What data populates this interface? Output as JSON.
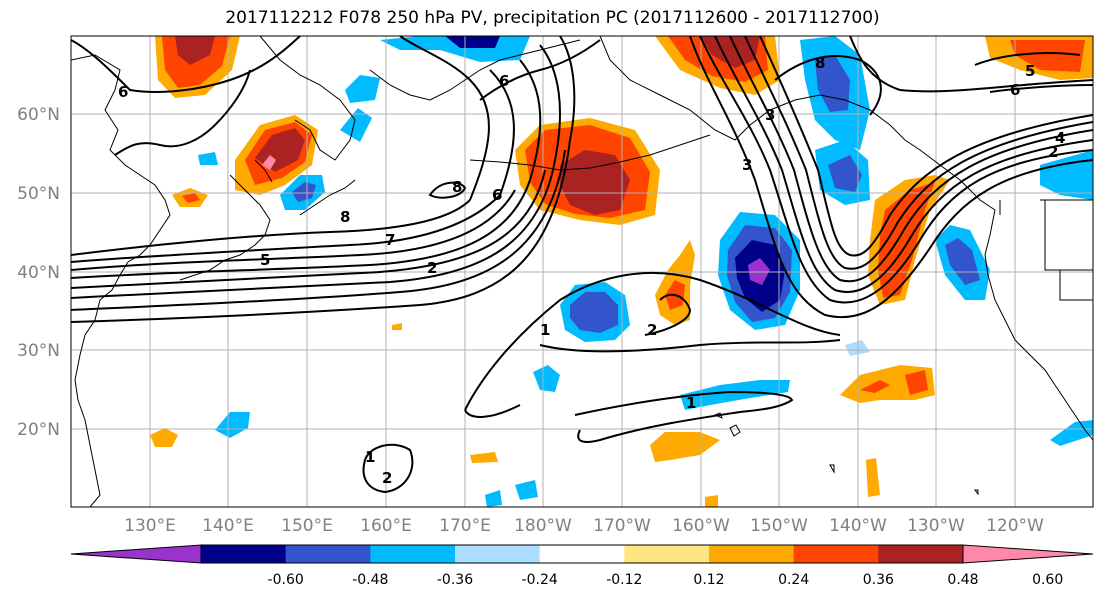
{
  "title": "2017112212 F078 250 hPa PV, precipitation PC (2017112600 - 2017112700)",
  "lat_labels": [
    "60°N",
    "50°N",
    "40°N",
    "30°N",
    "20°N"
  ],
  "lon_labels": [
    "130°E",
    "140°E",
    "150°E",
    "160°E",
    "170°E",
    "180°W",
    "170°W",
    "160°W",
    "150°W",
    "140°W",
    "130°W",
    "120°W"
  ],
  "colorbar": {
    "colors": [
      "#9933cc",
      "#000088",
      "#3355cc",
      "#00bbff",
      "#aaddff",
      "#ffffff",
      "#ffe680",
      "#ffaa00",
      "#ff4400",
      "#aa2222",
      "#ff88aa"
    ],
    "tick_labels": [
      "-0.60",
      "-0.48",
      "-0.36",
      "-0.24",
      "-0.12",
      "0.12",
      "0.24",
      "0.36",
      "0.48",
      "0.60"
    ]
  },
  "contour_labels": [
    "6",
    "6",
    "8",
    "8",
    "6",
    "7",
    "5",
    "2",
    "1",
    "2",
    "1",
    "1",
    "2",
    "3",
    "3",
    "8",
    "6",
    "4",
    "2",
    "5"
  ]
}
